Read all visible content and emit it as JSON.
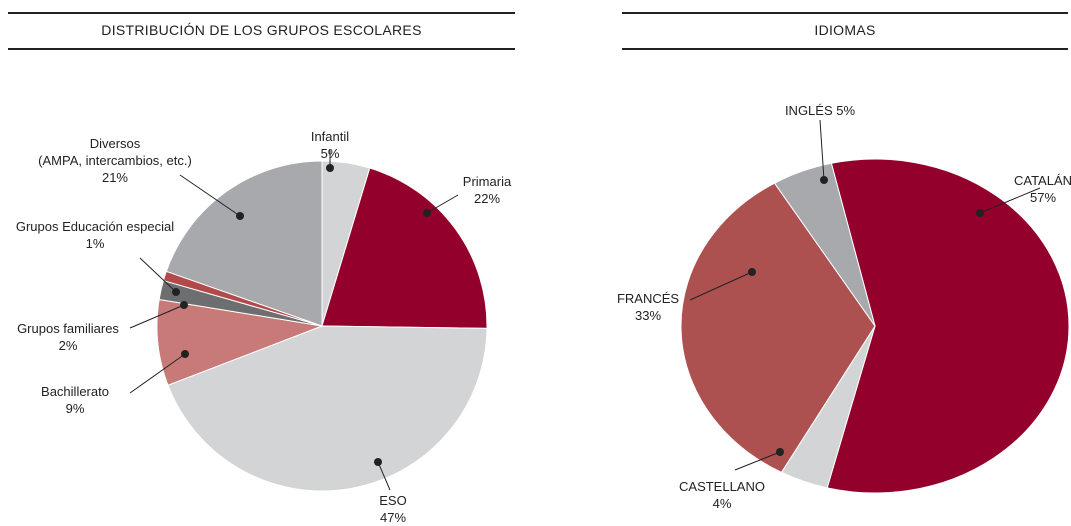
{
  "chart_data": [
    {
      "type": "pie",
      "title": "DISTRIBUCIÓN DE LOS GRUPOS ESCOLARES",
      "categories": [
        "Infantil",
        "Primaria",
        "ESO",
        "Bachillerato",
        "Grupos familiares",
        "Grupos Educación especial",
        "Diversos\n(AMPA, intercambios, etc.)"
      ],
      "values": [
        5,
        22,
        47,
        9,
        2,
        1,
        21
      ],
      "value_labels": [
        "5%",
        "22%",
        "47%",
        "9%",
        "2%",
        "1%",
        "21%"
      ],
      "colors": [
        "#d3d4d6",
        "#93002b",
        "#d3d4d6",
        "#c87a78",
        "#6d6e70",
        "#b24a4c",
        "#a8a9ad"
      ]
    },
    {
      "type": "pie",
      "title": "IDIOMAS",
      "categories": [
        "CATALÁN",
        "CASTELLANO",
        "FRANCÉS",
        "INGLÉS"
      ],
      "values": [
        57,
        4,
        33,
        5
      ],
      "value_labels": [
        "57%",
        "4%",
        "33%",
        "5%"
      ],
      "colors": [
        "#93002b",
        "#d3d4d6",
        "#ad5150",
        "#a8a9ad"
      ]
    }
  ]
}
